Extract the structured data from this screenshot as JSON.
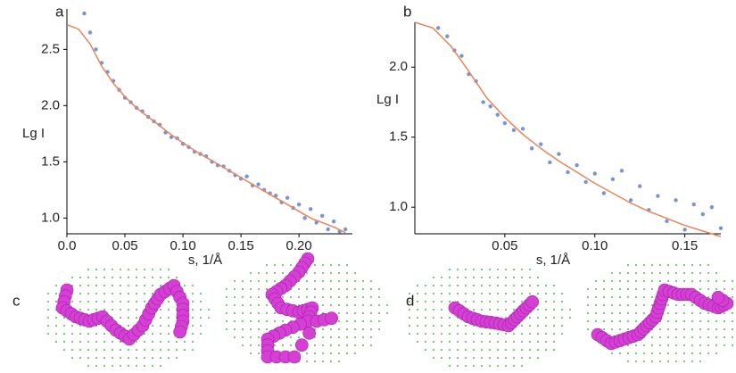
{
  "chart_data": [
    {
      "type": "scatter",
      "title": "a",
      "xlabel": "s, 1/Å",
      "ylabel": "Lg I",
      "xlim": [
        0,
        0.246
      ],
      "ylim": [
        0.86,
        2.86
      ],
      "xticks": [
        {
          "value": 0,
          "label": "0.0"
        },
        0.05,
        {
          "value": 0.1,
          "label": "0.10"
        },
        0.15,
        {
          "value": 0.2,
          "label": "0.20"
        }
      ],
      "yticks": [
        {
          "value": 1,
          "label": "1.0"
        },
        1.5,
        {
          "value": 2,
          "label": "2.0"
        },
        2.5
      ],
      "series": [
        {
          "type": "scatter",
          "color": "#7b93d1",
          "x": [
            0.015,
            0.02,
            0.025,
            0.03,
            0.035,
            0.04,
            0.045,
            0.05,
            0.055,
            0.06,
            0.065,
            0.07,
            0.075,
            0.08,
            0.085,
            0.09,
            0.095,
            0.1,
            0.105,
            0.11,
            0.115,
            0.12,
            0.125,
            0.13,
            0.135,
            0.14,
            0.145,
            0.15,
            0.155,
            0.16,
            0.165,
            0.17,
            0.175,
            0.18,
            0.185,
            0.19,
            0.195,
            0.2,
            0.205,
            0.21,
            0.215,
            0.22,
            0.225,
            0.23,
            0.235,
            0.24
          ],
          "values": [
            2.82,
            2.65,
            2.5,
            2.38,
            2.3,
            2.22,
            2.14,
            2.07,
            2.03,
            1.98,
            1.95,
            1.9,
            1.86,
            1.83,
            1.76,
            1.72,
            1.71,
            1.66,
            1.63,
            1.59,
            1.57,
            1.55,
            1.5,
            1.47,
            1.46,
            1.42,
            1.38,
            1.35,
            1.37,
            1.29,
            1.3,
            1.25,
            1.22,
            1.2,
            1.14,
            1.18,
            1.09,
            1.12,
            1.0,
            1.08,
            0.96,
            1.02,
            0.9,
            0.97,
            0.88,
            0.9
          ]
        },
        {
          "type": "line",
          "color": "#e8845a",
          "x": [
            0,
            0.01,
            0.02,
            0.03,
            0.04,
            0.05,
            0.06,
            0.07,
            0.08,
            0.09,
            0.1,
            0.11,
            0.12,
            0.13,
            0.14,
            0.15,
            0.16,
            0.17,
            0.18,
            0.19,
            0.2,
            0.21,
            0.22,
            0.23,
            0.24
          ],
          "values": [
            2.72,
            2.68,
            2.55,
            2.35,
            2.2,
            2.08,
            1.98,
            1.9,
            1.82,
            1.74,
            1.67,
            1.6,
            1.54,
            1.48,
            1.42,
            1.36,
            1.3,
            1.24,
            1.18,
            1.12,
            1.06,
            1.0,
            0.96,
            0.92,
            0.87
          ]
        }
      ]
    },
    {
      "type": "scatter",
      "title": "b",
      "xlabel": "s, 1/Å",
      "ylabel": "Lg I",
      "xlim": [
        0,
        0.17
      ],
      "ylim": [
        0.81,
        2.32
      ],
      "xticks": [
        0.05,
        {
          "value": 0.1,
          "label": "0.10"
        },
        0.15
      ],
      "yticks": [
        {
          "value": 1,
          "label": "1.0"
        },
        1.5,
        {
          "value": 2,
          "label": "2.0"
        }
      ],
      "series": [
        {
          "type": "scatter",
          "color": "#7b93d1",
          "x": [
            0.013,
            0.018,
            0.022,
            0.026,
            0.03,
            0.034,
            0.038,
            0.042,
            0.046,
            0.05,
            0.055,
            0.06,
            0.065,
            0.07,
            0.075,
            0.08,
            0.085,
            0.09,
            0.095,
            0.1,
            0.105,
            0.11,
            0.115,
            0.12,
            0.125,
            0.13,
            0.135,
            0.14,
            0.145,
            0.15,
            0.155,
            0.16,
            0.165,
            0.17
          ],
          "values": [
            2.28,
            2.22,
            2.12,
            2.08,
            1.95,
            1.9,
            1.75,
            1.72,
            1.66,
            1.6,
            1.55,
            1.56,
            1.42,
            1.45,
            1.32,
            1.38,
            1.25,
            1.3,
            1.18,
            1.24,
            1.1,
            1.2,
            1.26,
            1.05,
            1.15,
            0.98,
            1.08,
            0.9,
            1.05,
            0.84,
            1.02,
            0.95,
            1.0,
            0.85
          ]
        },
        {
          "type": "line",
          "color": "#e8845a",
          "x": [
            0,
            0.01,
            0.02,
            0.03,
            0.04,
            0.05,
            0.06,
            0.07,
            0.08,
            0.09,
            0.1,
            0.11,
            0.12,
            0.13,
            0.14,
            0.15,
            0.16,
            0.17
          ],
          "values": [
            2.32,
            2.28,
            2.15,
            1.97,
            1.78,
            1.64,
            1.52,
            1.42,
            1.33,
            1.25,
            1.17,
            1.1,
            1.03,
            0.97,
            0.92,
            0.87,
            0.83,
            0.79
          ]
        }
      ]
    }
  ],
  "model_panels": [
    {
      "label": "c"
    },
    {
      "label": "d"
    }
  ]
}
